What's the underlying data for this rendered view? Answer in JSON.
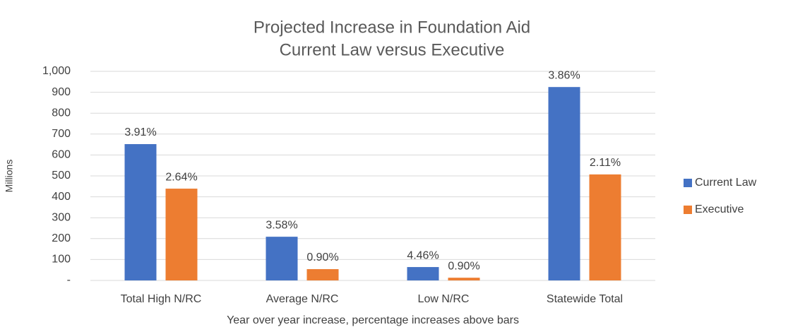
{
  "chart_data": {
    "type": "bar",
    "title": [
      "Projected Increase in Foundation Aid",
      "Current Law versus Executive"
    ],
    "x_label": "Year over year increase, percentage increases above bars",
    "y_label": "Millions",
    "categories": [
      "Total High N/RC",
      "Average N/RC",
      "Low N/RC",
      "Statewide Total"
    ],
    "series": [
      {
        "name": "Current Law",
        "color": "#4472c4",
        "values": [
          652,
          209,
          64,
          925
        ],
        "labels": [
          "3.91%",
          "3.58%",
          "4.46%",
          "3.86%"
        ]
      },
      {
        "name": "Executive",
        "color": "#ed7d31",
        "values": [
          439,
          54,
          13,
          507
        ],
        "labels": [
          "2.64%",
          "0.90%",
          "0.90%",
          "2.11%"
        ]
      }
    ],
    "ylim": [
      0,
      1000
    ],
    "yticks": [
      {
        "value": 0,
        "label": "-"
      },
      100,
      200,
      300,
      400,
      500,
      600,
      700,
      800,
      900,
      {
        "value": 1000,
        "label": "1,000"
      }
    ],
    "grid": true,
    "legend": "right"
  }
}
